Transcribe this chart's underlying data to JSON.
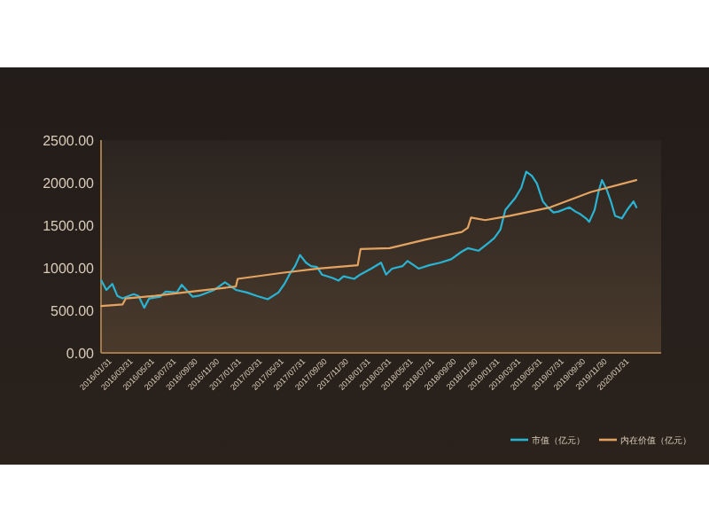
{
  "chart_data": {
    "type": "line",
    "series": [
      {
        "name": "市值（亿元）",
        "color": "#2ab4d4",
        "x": [
          "2016-01-01",
          "2016-01-15",
          "2016-02-01",
          "2016-02-15",
          "2016-03-01",
          "2016-04-01",
          "2016-04-15",
          "2016-05-01",
          "2016-05-15",
          "2016-06-15",
          "2016-07-01",
          "2016-08-01",
          "2016-08-15",
          "2016-09-15",
          "2016-10-01",
          "2016-10-15",
          "2016-11-15",
          "2016-12-15",
          "2017-01-01",
          "2017-01-15",
          "2017-02-15",
          "2017-03-15",
          "2017-04-15",
          "2017-05-15",
          "2017-06-01",
          "2017-06-15",
          "2017-07-01",
          "2017-07-15",
          "2017-08-01",
          "2017-08-15",
          "2017-09-01",
          "2017-09-15",
          "2017-10-15",
          "2017-11-01",
          "2017-11-15",
          "2017-12-15",
          "2018-01-01",
          "2018-02-01",
          "2018-03-01",
          "2018-03-15",
          "2018-04-01",
          "2018-05-01",
          "2018-05-15",
          "2018-06-15",
          "2018-07-15",
          "2018-08-15",
          "2018-09-15",
          "2018-10-15",
          "2018-11-01",
          "2018-12-01",
          "2019-01-01",
          "2019-01-15",
          "2019-02-01",
          "2019-02-15",
          "2019-03-15",
          "2019-04-01",
          "2019-04-15",
          "2019-05-01",
          "2019-05-15",
          "2019-06-01",
          "2019-06-15",
          "2019-07-01",
          "2019-07-15",
          "2019-08-15",
          "2019-09-01",
          "2019-09-15",
          "2019-10-01",
          "2019-10-10",
          "2019-10-25",
          "2019-11-05",
          "2019-11-15",
          "2019-11-28",
          "2019-12-10",
          "2019-12-22",
          "2020-01-10",
          "2020-01-25",
          "2020-02-12",
          "2020-02-20"
        ],
        "values": [
          850,
          740,
          810,
          670,
          640,
          690,
          670,
          530,
          640,
          660,
          720,
          710,
          800,
          660,
          670,
          690,
          740,
          830,
          780,
          740,
          710,
          670,
          630,
          710,
          810,
          920,
          1020,
          1150,
          1060,
          1020,
          1010,
          920,
          880,
          850,
          900,
          870,
          920,
          990,
          1060,
          920,
          990,
          1020,
          1080,
          990,
          1030,
          1060,
          1100,
          1190,
          1230,
          1200,
          1300,
          1350,
          1450,
          1680,
          1820,
          1940,
          2130,
          2080,
          1990,
          1780,
          1710,
          1650,
          1660,
          1710,
          1660,
          1630,
          1580,
          1540,
          1680,
          1890,
          2030,
          1920,
          1780,
          1610,
          1580,
          1680,
          1780,
          1710
        ]
      },
      {
        "name": "内在价值（亿元）",
        "color": "#e3a462",
        "x": [
          "2016-01-01",
          "2016-03-01",
          "2016-03-10",
          "2016-06-01",
          "2016-08-20",
          "2017-01-15",
          "2017-01-20",
          "2017-05-25",
          "2017-09-05",
          "2017-12-25",
          "2018-01-02",
          "2018-03-25",
          "2018-07-03",
          "2018-10-15",
          "2018-11-01",
          "2018-11-10",
          "2018-12-20",
          "2019-02-28",
          "2019-06-22",
          "2019-10-15",
          "2020-02-20"
        ],
        "values": [
          550,
          570,
          640,
          670,
          710,
          780,
          870,
          940,
          990,
          1030,
          1220,
          1230,
          1330,
          1420,
          1470,
          1590,
          1560,
          1610,
          1710,
          1890,
          2030
        ]
      }
    ],
    "xlim": [
      "2015-12-31",
      "2020-04-30"
    ],
    "xticks": [
      {
        "value": "2016-01-31",
        "label": "2016/01/31"
      },
      {
        "value": "2016-03-31",
        "label": "2016/03/31"
      },
      {
        "value": "2016-05-31",
        "label": "2016/05/31"
      },
      {
        "value": "2016-07-31",
        "label": "2016/07/31"
      },
      {
        "value": "2016-09-30",
        "label": "2016/09/30"
      },
      {
        "value": "2016-11-30",
        "label": "2016/11/30"
      },
      {
        "value": "2017-01-31",
        "label": "2017/01/31"
      },
      {
        "value": "2017-03-31",
        "label": "2017/03/31"
      },
      {
        "value": "2017-05-31",
        "label": "2017/05/31"
      },
      {
        "value": "2017-07-31",
        "label": "2017/07/31"
      },
      {
        "value": "2017-09-30",
        "label": "2017/09/30"
      },
      {
        "value": "2017-11-30",
        "label": "2017/11/30"
      },
      {
        "value": "2018-01-31",
        "label": "2018/01/31"
      },
      {
        "value": "2018-03-31",
        "label": "2018/03/31"
      },
      {
        "value": "2018-05-31",
        "label": "2018/05/31"
      },
      {
        "value": "2018-07-31",
        "label": "2018/07/31"
      },
      {
        "value": "2018-09-30",
        "label": "2018/09/30"
      },
      {
        "value": "2018-11-30",
        "label": "2018/11/30"
      },
      {
        "value": "2019-01-31",
        "label": "2019/01/31"
      },
      {
        "value": "2019-03-31",
        "label": "2019/03/31"
      },
      {
        "value": "2019-05-31",
        "label": "2019/05/31"
      },
      {
        "value": "2019-07-31",
        "label": "2019/07/31"
      },
      {
        "value": "2019-09-30",
        "label": "2019/09/30"
      },
      {
        "value": "2019-11-30",
        "label": "2019/11/30"
      },
      {
        "value": "2020-01-31",
        "label": "2020/01/31"
      }
    ],
    "ylim": [
      0,
      2500
    ],
    "yticks": [
      {
        "value": 0,
        "label": "0.00"
      },
      {
        "value": 500,
        "label": "500.00"
      },
      {
        "value": 1000,
        "label": "1000.00"
      },
      {
        "value": 1500,
        "label": "1500.00"
      },
      {
        "value": 2000,
        "label": "2000.00"
      },
      {
        "value": 2500,
        "label": "2500.00"
      }
    ],
    "grid": false,
    "legend": "bottom right",
    "marker": "none",
    "line_style": "solid"
  }
}
